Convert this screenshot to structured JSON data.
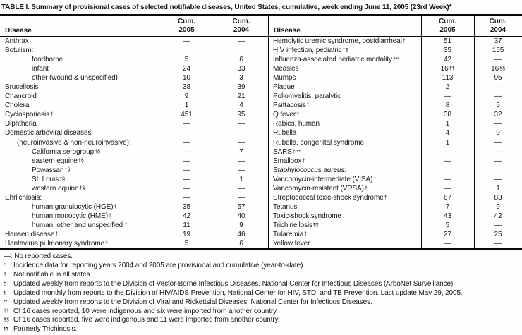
{
  "title": "TABLE I. Summary of provisional cases of selected notifiable diseases, United States, cumulative, week ending June 11, 2005 (23rd Week)*",
  "header": {
    "disease": "Disease",
    "cum2005": [
      "Cum.",
      "2005"
    ],
    "cum2004": [
      "Cum.",
      "2004"
    ]
  },
  "tables": [
    {
      "side": "left",
      "rows": [
        {
          "name": "Anthrax",
          "indent": 0,
          "v2005": "—",
          "v2004": "—"
        },
        {
          "name": "Botulism:",
          "indent": 0,
          "v2005": "",
          "v2004": ""
        },
        {
          "name": "foodborne",
          "indent": 2,
          "v2005": "5",
          "v2004": "6"
        },
        {
          "name": "infant",
          "indent": 2,
          "v2005": "24",
          "v2004": "33"
        },
        {
          "name": "other (wound & unspecified)",
          "indent": 2,
          "v2005": "10",
          "v2004": "3"
        },
        {
          "name": "Brucellosis",
          "indent": 0,
          "v2005": "38",
          "v2004": "39"
        },
        {
          "name": "Chancroid",
          "indent": 0,
          "v2005": "9",
          "v2004": "21"
        },
        {
          "name": "Cholera",
          "indent": 0,
          "v2005": "1",
          "v2004": "4"
        },
        {
          "name": "Cyclosporiasis",
          "sup": "†",
          "indent": 0,
          "v2005": "451",
          "v2004": "95"
        },
        {
          "name": "Diphtheria",
          "indent": 0,
          "v2005": "—",
          "v2004": "—"
        },
        {
          "name": "Domestic arboviral diseases",
          "indent": 0,
          "v2005": "",
          "v2004": ""
        },
        {
          "name": "(neuroinvasive & non-neuroinvasive):",
          "indent": 1,
          "v2005": "—",
          "v2004": "—"
        },
        {
          "name": "California serogroup",
          "sup": "†§",
          "indent": 2,
          "v2005": "—",
          "v2004": "7"
        },
        {
          "name": "eastern equine",
          "sup": "†§",
          "indent": 2,
          "v2005": "—",
          "v2004": "—"
        },
        {
          "name": "Powassan",
          "sup": "†§",
          "indent": 2,
          "v2005": "—",
          "v2004": "—"
        },
        {
          "name": "St. Louis",
          "sup": "†§",
          "indent": 2,
          "v2005": "—",
          "v2004": "1"
        },
        {
          "name": "western equine",
          "sup": "†§",
          "indent": 2,
          "v2005": "—",
          "v2004": "—"
        },
        {
          "name": "Ehrlichiosis:",
          "indent": 0,
          "v2005": "—",
          "v2004": "—"
        },
        {
          "name": "human granulocytic (HGE)",
          "sup": "†",
          "indent": 2,
          "v2005": "35",
          "v2004": "67"
        },
        {
          "name": "human monocytic (HME)",
          "sup": "†",
          "indent": 2,
          "v2005": "42",
          "v2004": "40"
        },
        {
          "name": "human, other and unspecified",
          "sup": " †",
          "indent": 2,
          "v2005": "11",
          "v2004": "9"
        },
        {
          "name": "Hansen disease",
          "sup": "†",
          "indent": 0,
          "v2005": "19",
          "v2004": "46"
        },
        {
          "name": "Hantavirus pulmonary syndrome",
          "sup": "†",
          "indent": 0,
          "v2005": "5",
          "v2004": "6"
        }
      ]
    },
    {
      "side": "right",
      "rows": [
        {
          "name": "Hemolytic uremic syndrome, postdiarrheal",
          "sup": "†",
          "indent": 0,
          "v2005": "51",
          "v2004": "37"
        },
        {
          "name": "HIV infection, pediatric",
          "sup": "†¶",
          "indent": 0,
          "v2005": "35",
          "v2004": "155"
        },
        {
          "name": "Influenza-associated pediatric mortality",
          "sup": "†**",
          "indent": 0,
          "v2005": "42",
          "v2004": "—"
        },
        {
          "name": "Measles",
          "indent": 0,
          "v2005": "16",
          "v2005sup": "††",
          "v2004": "16",
          "v2004sup": "§§"
        },
        {
          "name": "Mumps",
          "indent": 0,
          "v2005": "113",
          "v2004": "95"
        },
        {
          "name": "Plague",
          "indent": 0,
          "v2005": "2",
          "v2004": "—"
        },
        {
          "name": "Poliomyelitis, paralytic",
          "indent": 0,
          "v2005": "—",
          "v2004": "—"
        },
        {
          "name": "Psittacosis",
          "sup": "†",
          "indent": 0,
          "v2005": "8",
          "v2004": "5"
        },
        {
          "name": "Q fever",
          "sup": "†",
          "indent": 0,
          "v2005": "38",
          "v2004": "32"
        },
        {
          "name": "Rabies, human",
          "indent": 0,
          "v2005": "1",
          "v2004": "—"
        },
        {
          "name": "Rubella",
          "indent": 0,
          "v2005": "4",
          "v2004": "9"
        },
        {
          "name": "Rubella, congenital syndrome",
          "indent": 0,
          "v2005": "1",
          "v2004": "—"
        },
        {
          "name": "SARS",
          "sup": "† **",
          "indent": 0,
          "v2005": "—",
          "v2004": "—"
        },
        {
          "name": "Smallpox",
          "sup": "†",
          "indent": 0,
          "v2005": "—",
          "v2004": "—"
        },
        {
          "name": "Staphylococcus aureus:",
          "italic": true,
          "indent": 0,
          "v2005": "",
          "v2004": ""
        },
        {
          "name": "Vancomycin-intermediate (VISA)",
          "sup": "†",
          "indent": 2,
          "v2005": "—",
          "v2004": "—"
        },
        {
          "name": "Vancomycin-resistant (VRSA)",
          "sup": "†",
          "indent": 2,
          "v2005": "—",
          "v2004": "1"
        },
        {
          "name": "Streptococcal toxic-shock syndrome",
          "sup": "†",
          "indent": 0,
          "v2005": "67",
          "v2004": "83"
        },
        {
          "name": "Tetanus",
          "indent": 0,
          "v2005": "7",
          "v2004": "9"
        },
        {
          "name": "Toxic-shock syndrome",
          "indent": 0,
          "v2005": "43",
          "v2004": "42"
        },
        {
          "name": "Trichinellosis",
          "sup": "¶¶",
          "indent": 0,
          "v2005": "5",
          "v2004": "—"
        },
        {
          "name": "Tularemia",
          "sup": "†",
          "indent": 0,
          "v2005": "27",
          "v2004": "25"
        },
        {
          "name": "Yellow fever",
          "indent": 0,
          "v2005": "—",
          "v2004": "—"
        }
      ]
    }
  ],
  "footnotes": [
    {
      "sup": "",
      "text": "—: No reported cases."
    },
    {
      "sup": "*",
      "text": "Incidence data for reporting years 2004 and 2005 are provisional and cumulative (year-to-date)."
    },
    {
      "sup": "†",
      "text": "Not notifiable in all states."
    },
    {
      "sup": "§",
      "text": "Updated weekly from reports to the Division of Vector-Borne Infectious Diseases, National Center for Infectious Diseases (ArboNet Surveillance)."
    },
    {
      "sup": "¶",
      "text": "Updated monthly from reports to the Division of HIV/AIDS Prevention, National Center for HIV, STD, and TB Prevention. Last update May 29, 2005."
    },
    {
      "sup": "**",
      "text": "Updated weekly from reports to the Division of Viral and Rickettsial Diseases, National Center for Infectious Diseases."
    },
    {
      "sup": "††",
      "text": "Of 16 cases reported, 10 were indigenous and six were imported from another country."
    },
    {
      "sup": "§§",
      "text": "Of 16 cases reported, five were indigenous and 11 were imported from another country."
    },
    {
      "sup": "¶¶",
      "text": "Formerly Trichinosis."
    }
  ],
  "colors": {
    "text": "#161616",
    "rule": "#0a0a0a",
    "background": "#fefefe"
  }
}
